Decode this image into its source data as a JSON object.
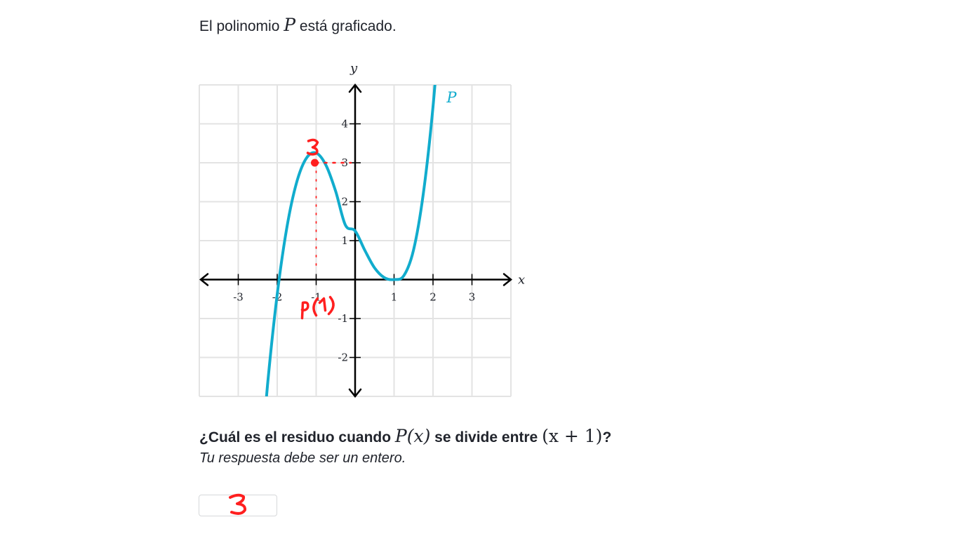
{
  "prompt": {
    "before": "El polinomio ",
    "symbol": "P",
    "after": " está graficado."
  },
  "chart_data": {
    "type": "line",
    "xlabel": "x",
    "ylabel": "y",
    "xlim": [
      -4,
      4
    ],
    "ylim": [
      -3,
      5
    ],
    "grid": true,
    "x_ticks": [
      -3,
      -2,
      -1,
      1,
      2,
      3
    ],
    "y_ticks": [
      -2,
      -1,
      1,
      2,
      3,
      4
    ],
    "x_tick_labels": [
      "-3",
      "-2",
      "-1",
      "1",
      "2",
      "3"
    ],
    "y_tick_labels": [
      "-2",
      "-1",
      "1",
      "2",
      "3",
      "4"
    ],
    "series": [
      {
        "name": "P",
        "color": "#11accd",
        "x": [
          -2.5,
          -2.25,
          -2.0,
          -1.75,
          -1.5,
          -1.25,
          -1.0,
          -0.75,
          -0.5,
          -0.25,
          0.0,
          0.25,
          0.5,
          0.75,
          1.0,
          1.25,
          1.5,
          1.75,
          2.0,
          2.25
        ],
        "y": [
          -5.68,
          -2.72,
          -0.38,
          1.35,
          2.5,
          3.12,
          3.25,
          2.94,
          2.27,
          1.4,
          1.25,
          0.75,
          0.3,
          0.05,
          0.0,
          0.1,
          0.76,
          2.2,
          4.44,
          7.52
        ]
      }
    ],
    "annotations": {
      "ink_color": "#ff1f1f",
      "point": [
        -1,
        3
      ],
      "point_label": "3",
      "x_label": "P(-1)"
    }
  },
  "question": {
    "lead": "¿Cuál es el residuo cuando ",
    "expr1": "P(x)",
    "middle": " se divide entre ",
    "expr2": "(x + 1)",
    "tail": "?"
  },
  "hint": "Tu respuesta debe ser un entero.",
  "answer": {
    "value": "3"
  }
}
